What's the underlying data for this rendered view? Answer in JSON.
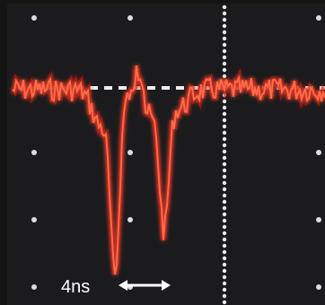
{
  "annotation": {
    "label": "4ns"
  }
}
